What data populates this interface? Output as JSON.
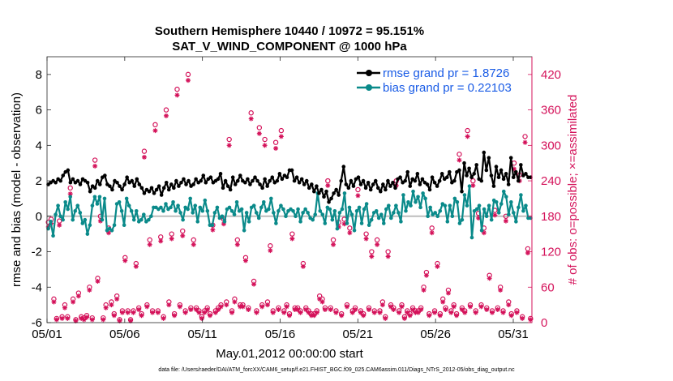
{
  "colors": {
    "rmse": "#000000",
    "bias": "#0a8a8a",
    "obs": "#d4125a",
    "legend_text": "#1a5ce6",
    "zero": "#bdbdbd"
  },
  "chart_data": {
    "type": "line",
    "title": "Southern Hemisphere 10440 / 10972 = 95.151%",
    "subtitle": "SAT_V_WIND_COMPONENT @ 1000 hPa",
    "xlabel": "May.01,2012 00:00:00 start",
    "ylabel_left": "rmse and bias (model - observation)",
    "ylabel_right": "# of obs: o=possible; ×=assimilated",
    "footnote": "data file: /Users/raeder/DAI/ATM_forcXX/CAM6_setup/f.e21.FHIST_BGC.f09_025.CAM6assim.011/Diags_NTrS_2012-05/obs_diag_output.nc",
    "xlim": [
      1,
      32.2
    ],
    "ylim_left": [
      -6,
      9
    ],
    "ylim_right": [
      0,
      450
    ],
    "x_ticks": [
      1,
      6,
      11,
      16,
      21,
      26,
      31
    ],
    "x_tick_labels": [
      "05/01",
      "05/06",
      "05/11",
      "05/16",
      "05/21",
      "05/26",
      "05/31"
    ],
    "y_ticks_left": [
      -6,
      -4,
      -2,
      0,
      2,
      4,
      6,
      8
    ],
    "y_ticks_right": [
      0,
      60,
      120,
      180,
      240,
      300,
      360,
      420
    ],
    "legend": [
      {
        "label": "rmse grand pr = 1.8726",
        "series": "rmse"
      },
      {
        "label": "bias grand pr = 0.22103",
        "series": "bias"
      }
    ],
    "series": [
      {
        "name": "rmse",
        "axis": "left",
        "values": [
          1.8,
          1.9,
          2.0,
          1.9,
          2.1,
          2.0,
          2.3,
          2.5,
          2.6,
          1.9,
          2.1,
          1.9,
          2.0,
          1.8,
          2.1,
          2.0,
          1.9,
          1.4,
          1.7,
          1.6,
          2.0,
          1.8,
          2.2,
          2.3,
          1.8,
          1.7,
          1.5,
          2.0,
          1.9,
          1.7,
          1.5,
          1.8,
          2.2,
          1.9,
          2.0,
          1.7,
          2.1,
          1.8,
          1.6,
          1.3,
          1.5,
          1.4,
          1.6,
          1.3,
          1.5,
          1.7,
          1.2,
          1.6,
          1.9,
          1.5,
          1.8,
          1.6,
          2.0,
          1.7,
          1.9,
          2.1,
          1.8,
          2.0,
          1.7,
          1.8,
          2.1,
          1.9,
          2.0,
          2.3,
          1.9,
          2.1,
          2.2,
          1.9,
          2.0,
          2.1,
          2.4,
          1.6,
          2.0,
          1.7,
          1.5,
          2.2,
          1.8,
          2.0,
          2.3,
          2.0,
          1.9,
          2.1,
          1.8,
          2.0,
          2.2,
          2.0,
          1.8,
          1.6,
          2.1,
          1.7,
          2.0,
          2.2,
          1.9,
          2.0,
          2.4,
          2.1,
          2.3,
          2.2,
          2.6,
          2.6,
          2.0,
          2.2,
          1.9,
          2.1,
          1.8,
          2.0,
          1.6,
          1.8,
          1.4,
          1.7,
          1.3,
          1.5,
          1.1,
          1.4,
          0.8,
          1.0,
          1.3,
          1.5,
          1.2,
          2.0,
          2.8,
          1.8,
          1.6,
          2.0,
          1.7,
          2.1,
          2.2,
          1.8,
          2.0,
          1.6,
          1.9,
          1.5,
          1.8,
          2.0,
          1.6,
          1.4,
          1.8,
          1.5,
          2.0,
          1.7,
          1.9,
          1.6,
          2.1,
          2.2,
          1.9,
          2.0,
          2.5,
          1.7,
          2.1,
          2.0,
          2.4,
          1.8,
          2.1,
          1.9,
          1.8,
          1.5,
          2.2,
          1.9,
          1.7,
          2.0,
          2.4,
          2.1,
          2.2,
          2.5,
          1.9,
          2.0,
          2.5,
          2.6,
          1.4,
          3.0,
          2.3,
          2.7,
          2.2,
          2.4,
          2.9,
          2.1,
          2.0,
          3.6,
          2.6,
          3.3,
          2.3,
          1.7,
          2.8,
          2.2,
          2.6,
          2.1,
          2.4,
          1.8,
          3.3,
          2.2,
          2.5,
          2.0,
          2.9,
          2.3,
          2.4,
          2.2,
          2.2
        ]
      },
      {
        "name": "bias",
        "axis": "left",
        "values": [
          -0.7,
          -0.3,
          -1.1,
          0.1,
          0.6,
          0.0,
          -0.2,
          0.8,
          0.4,
          1.1,
          -0.2,
          0.3,
          0.6,
          0.2,
          -0.4,
          -0.2,
          -1.0,
          -0.5,
          0.6,
          1.1,
          0.7,
          1.1,
          -0.2,
          1.0,
          -0.8,
          -0.7,
          -0.8,
          -0.5,
          0.7,
          0.8,
          0.3,
          -0.5,
          1.0,
          0.6,
          0.3,
          -0.2,
          0.3,
          -0.3,
          -0.2,
          0.1,
          -0.3,
          -0.2,
          0.0,
          0.5,
          0.5,
          0.4,
          0.5,
          0.3,
          0.7,
          0.4,
          0.5,
          0.8,
          0.3,
          0.6,
          0.2,
          -0.2,
          0.5,
          0.4,
          1.0,
          0.2,
          0.6,
          -0.3,
          0.5,
          0.3,
          0.9,
          0.3,
          -0.5,
          -0.5,
          0.2,
          0.5,
          -0.1,
          0.0,
          -0.3,
          0.4,
          0.5,
          0.3,
          0.1,
          0.8,
          0.3,
          0.4,
          -0.8,
          0.2,
          -0.3,
          0.5,
          0.6,
          0.2,
          -0.1,
          0.5,
          0.8,
          0.3,
          0.4,
          1.0,
          0.2,
          -0.4,
          0.3,
          0.6,
          0.4,
          0.0,
          0.3,
          0.4,
          0.3,
          0.0,
          0.4,
          -0.3,
          0.2,
          0.4,
          0.2,
          -0.1,
          -0.2,
          0.1,
          1.3,
          0.3,
          0.1,
          -0.4,
          0.5,
          0.4,
          -0.2,
          0.3,
          -0.7,
          0.2,
          0.4,
          1.3,
          -0.4,
          0.5,
          0.1,
          -0.8,
          0.3,
          0.5,
          -0.4,
          0.4,
          0.7,
          -0.5,
          -0.2,
          0.2,
          0.3,
          -0.1,
          0.1,
          -0.4,
          0.4,
          0.6,
          -0.1,
          0.2,
          0.6,
          0.2,
          -0.3,
          1.2,
          0.3,
          0.8,
          0.6,
          1.4,
          0.8,
          1.1,
          0.5,
          1.3,
          1.0,
          0.0,
          0.5,
          0.1,
          0.2,
          0.0,
          0.3,
          0.7,
          0.6,
          -0.3,
          0.6,
          0.0,
          1.0,
          0.8,
          -0.4,
          -0.2,
          1.2,
          0.6,
          1.7,
          -1.2,
          0.3,
          0.4,
          0.6,
          -0.8,
          0.4,
          0.0,
          0.6,
          -0.2,
          0.9,
          0.8,
          0.2,
          0.7,
          1.4,
          1.1,
          0.1,
          0.8,
          0.2,
          -0.3,
          0.5,
          1.2,
          0.3,
          0.6,
          -0.1,
          -0.1
        ]
      },
      {
        "name": "obs_possible",
        "axis": "right",
        "values": [
          170,
          175,
          40,
          7,
          172,
          10,
          30,
          10,
          228,
          40,
          5,
          50,
          10,
          8,
          12,
          60,
          8,
          275,
          75,
          180,
          8,
          30,
          160,
          35,
          15,
          45,
          5,
          20,
          110,
          20,
          5,
          20,
          100,
          25,
          15,
          290,
          30,
          140,
          20,
          335,
          20,
          145,
          10,
          360,
          35,
          150,
          15,
          395,
          30,
          155,
          20,
          420,
          25,
          140,
          25,
          20,
          10,
          20,
          25,
          15,
          165,
          20,
          25,
          30,
          175,
          35,
          310,
          20,
          40,
          140,
          30,
          30,
          110,
          25,
          355,
          70,
          20,
          330,
          30,
          310,
          35,
          130,
          20,
          305,
          25,
          325,
          20,
          30,
          15,
          150,
          25,
          25,
          20,
          100,
          25,
          20,
          15,
          15,
          20,
          45,
          40,
          25,
          240,
          25,
          140,
          20,
          170,
          15,
          175,
          30,
          160,
          20,
          25,
          225,
          20,
          15,
          150,
          25,
          120,
          20,
          140,
          20,
          35,
          10,
          120,
          30,
          25,
          240,
          20,
          30,
          10,
          20,
          15,
          25,
          20,
          20,
          25,
          60,
          85,
          15,
          160,
          20,
          100,
          15,
          40,
          25,
          55,
          20,
          30,
          15,
          285,
          25,
          20,
          325,
          30,
          240,
          20,
          185,
          30,
          160,
          25,
          80,
          20,
          190,
          25,
          60,
          20,
          180,
          35,
          15,
          270,
          20,
          250,
          10,
          315,
          125,
          7
        ]
      },
      {
        "name": "obs_assimilated",
        "axis": "right",
        "values": [
          162,
          168,
          35,
          5,
          165,
          7,
          25,
          7,
          218,
          35,
          3,
          45,
          7,
          5,
          9,
          55,
          5,
          265,
          70,
          172,
          5,
          25,
          152,
          30,
          12,
          40,
          3,
          17,
          105,
          17,
          3,
          17,
          95,
          22,
          12,
          280,
          27,
          132,
          17,
          325,
          17,
          138,
          7,
          350,
          30,
          142,
          12,
          385,
          27,
          147,
          17,
          410,
          22,
          132,
          22,
          17,
          7,
          17,
          22,
          12,
          157,
          17,
          22,
          27,
          167,
          30,
          300,
          17,
          35,
          132,
          27,
          27,
          105,
          22,
          345,
          65,
          17,
          320,
          27,
          300,
          30,
          122,
          17,
          295,
          22,
          315,
          17,
          27,
          12,
          142,
          22,
          22,
          17,
          95,
          22,
          17,
          12,
          12,
          17,
          40,
          35,
          22,
          232,
          22,
          132,
          17,
          162,
          12,
          167,
          27,
          152,
          17,
          22,
          215,
          17,
          12,
          142,
          22,
          112,
          17,
          132,
          17,
          30,
          7,
          112,
          27,
          22,
          232,
          17,
          27,
          7,
          17,
          12,
          22,
          17,
          17,
          22,
          55,
          80,
          12,
          152,
          17,
          95,
          12,
          35,
          22,
          50,
          17,
          27,
          12,
          275,
          22,
          17,
          315,
          27,
          232,
          17,
          177,
          27,
          152,
          22,
          75,
          17,
          182,
          22,
          55,
          17,
          172,
          30,
          12,
          260,
          17,
          240,
          7,
          305,
          118,
          5
        ]
      }
    ]
  }
}
